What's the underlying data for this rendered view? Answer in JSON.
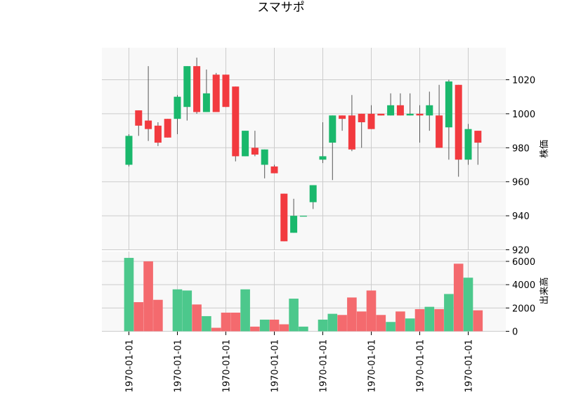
{
  "chart_data": {
    "type": "candlestick",
    "title": "スマサポ",
    "price_axis": {
      "label": "株価",
      "range": [
        920,
        1037
      ],
      "ticks": [
        920,
        940,
        960,
        980,
        1000,
        1020
      ]
    },
    "volume_axis": {
      "label": "出来高",
      "range": [
        0,
        6300
      ],
      "ticks": [
        0,
        2000,
        4000,
        6000
      ]
    },
    "x_tick_labels": [
      "1970-01-01",
      "1970-01-01",
      "1970-01-01",
      "1970-01-01",
      "1970-01-01",
      "1970-01-01",
      "1970-01-01",
      "1970-01-01"
    ],
    "x_tick_positions": [
      0,
      5,
      10,
      15,
      20,
      25,
      30,
      35
    ],
    "grid": true,
    "colors": {
      "up": "#1ab86c",
      "down": "#f23a3f",
      "up_volume": "#4cc88c",
      "down_volume": "#f46a6e",
      "wick": "#555555",
      "panel_bg": "#f8f8f8",
      "grid": "#cccccc"
    },
    "candles": [
      {
        "open": 970,
        "high": 988,
        "low": 969,
        "close": 987,
        "volume": 6300
      },
      {
        "open": 1002,
        "high": 1002,
        "low": 987,
        "close": 993,
        "volume": 2500
      },
      {
        "open": 996,
        "high": 1028,
        "low": 984,
        "close": 991,
        "volume": 6000
      },
      {
        "open": 993,
        "high": 995,
        "low": 981,
        "close": 983,
        "volume": 2700
      },
      {
        "open": 997,
        "high": 997,
        "low": 986,
        "close": 986,
        "volume": 0
      },
      {
        "open": 997,
        "high": 1011,
        "low": 988,
        "close": 1010,
        "volume": 3600
      },
      {
        "open": 1004,
        "high": 1028,
        "low": 996,
        "close": 1028,
        "volume": 3500
      },
      {
        "open": 1028,
        "high": 1033,
        "low": 1000,
        "close": 1001,
        "volume": 2300
      },
      {
        "open": 1001,
        "high": 1026,
        "low": 1001,
        "close": 1012,
        "volume": 1300
      },
      {
        "open": 1023,
        "high": 1024,
        "low": 1001,
        "close": 1001,
        "volume": 300
      },
      {
        "open": 1023,
        "high": 1023,
        "low": 1004,
        "close": 1004,
        "volume": 1600
      },
      {
        "open": 1016,
        "high": 1016,
        "low": 972,
        "close": 975,
        "volume": 1600
      },
      {
        "open": 975,
        "high": 990,
        "low": 975,
        "close": 990,
        "volume": 3600
      },
      {
        "open": 980,
        "high": 990,
        "low": 975,
        "close": 976,
        "volume": 400
      },
      {
        "open": 970,
        "high": 979,
        "low": 962,
        "close": 979,
        "volume": 1000
      },
      {
        "open": 969,
        "high": 970,
        "low": 965,
        "close": 965,
        "volume": 1000
      },
      {
        "open": 953,
        "high": 953,
        "low": 925,
        "close": 925,
        "volume": 600
      },
      {
        "open": 930,
        "high": 950,
        "low": 930,
        "close": 940,
        "volume": 2800
      },
      {
        "open": 940,
        "high": 940,
        "low": 940,
        "close": 940,
        "volume": 400
      },
      {
        "open": 948,
        "high": 958,
        "low": 944,
        "close": 958,
        "volume": 0
      },
      {
        "open": 973,
        "high": 995,
        "low": 971,
        "close": 975,
        "volume": 1000
      },
      {
        "open": 983,
        "high": 999,
        "low": 961,
        "close": 999,
        "volume": 1500
      },
      {
        "open": 999,
        "high": 999,
        "low": 990,
        "close": 997,
        "volume": 1400
      },
      {
        "open": 999,
        "high": 1011,
        "low": 978,
        "close": 979,
        "volume": 2900
      },
      {
        "open": 1000,
        "high": 1000,
        "low": 980,
        "close": 995,
        "volume": 1700
      },
      {
        "open": 1000,
        "high": 1005,
        "low": 991,
        "close": 991,
        "volume": 3500
      },
      {
        "open": 1000,
        "high": 1000,
        "low": 999,
        "close": 999,
        "volume": 1400
      },
      {
        "open": 999,
        "high": 1012,
        "low": 999,
        "close": 1005,
        "volume": 800
      },
      {
        "open": 1005,
        "high": 1012,
        "low": 999,
        "close": 999,
        "volume": 1700
      },
      {
        "open": 999,
        "high": 1012,
        "low": 999,
        "close": 1000,
        "volume": 1100
      },
      {
        "open": 1000,
        "high": 1005,
        "low": 983,
        "close": 999,
        "volume": 1900
      },
      {
        "open": 999,
        "high": 1013,
        "low": 990,
        "close": 1005,
        "volume": 2100
      },
      {
        "open": 999,
        "high": 1017,
        "low": 980,
        "close": 980,
        "volume": 1900
      },
      {
        "open": 992,
        "high": 1020,
        "low": 973,
        "close": 1019,
        "volume": 3200
      },
      {
        "open": 1017,
        "high": 1017,
        "low": 963,
        "close": 973,
        "volume": 5800
      },
      {
        "open": 973,
        "high": 994,
        "low": 970,
        "close": 991,
        "volume": 4600
      },
      {
        "open": 990,
        "high": 990,
        "low": 970,
        "close": 983,
        "volume": 1800
      }
    ]
  }
}
